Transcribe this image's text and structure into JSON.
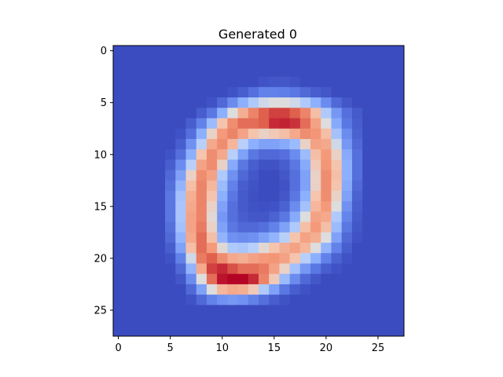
{
  "chart_data": {
    "type": "heatmap",
    "title": "Generated 0",
    "xlabel": "",
    "ylabel": "",
    "colormap": "coolwarm",
    "grid": false,
    "rows": 28,
    "cols": 28,
    "x_ticks": [
      0,
      5,
      10,
      15,
      20,
      25
    ],
    "y_ticks": [
      0,
      5,
      10,
      15,
      20,
      25
    ],
    "value_range": [
      0,
      1
    ],
    "values": [
      [
        0,
        0,
        0,
        0,
        0,
        0,
        0,
        0,
        0,
        0,
        0,
        0,
        0,
        0,
        0,
        0,
        0,
        0,
        0,
        0,
        0,
        0,
        0,
        0,
        0,
        0,
        0,
        0
      ],
      [
        0,
        0,
        0,
        0,
        0,
        0,
        0,
        0,
        0,
        0,
        0,
        0,
        0,
        0,
        0,
        0,
        0,
        0,
        0,
        0,
        0,
        0,
        0,
        0,
        0,
        0,
        0,
        0
      ],
      [
        0,
        0,
        0,
        0,
        0,
        0,
        0,
        0,
        0,
        0,
        0,
        0,
        0,
        0,
        0,
        0,
        0,
        0,
        0,
        0,
        0,
        0,
        0,
        0,
        0,
        0,
        0,
        0
      ],
      [
        0,
        0,
        0,
        0,
        0,
        0,
        0,
        0,
        0,
        0,
        0,
        0,
        0,
        0,
        0.02,
        0.03,
        0.03,
        0.02,
        0,
        0,
        0,
        0,
        0,
        0,
        0,
        0,
        0,
        0
      ],
      [
        0,
        0,
        0,
        0,
        0,
        0,
        0,
        0,
        0,
        0,
        0,
        0.02,
        0.05,
        0.1,
        0.15,
        0.15,
        0.14,
        0.12,
        0.08,
        0.05,
        0.03,
        0,
        0,
        0,
        0,
        0,
        0,
        0
      ],
      [
        0,
        0,
        0,
        0,
        0,
        0,
        0,
        0,
        0,
        0.02,
        0.08,
        0.18,
        0.3,
        0.42,
        0.48,
        0.5,
        0.5,
        0.48,
        0.42,
        0.3,
        0.18,
        0.08,
        0.03,
        0,
        0,
        0,
        0,
        0
      ],
      [
        0,
        0,
        0,
        0,
        0,
        0,
        0,
        0,
        0.05,
        0.12,
        0.3,
        0.5,
        0.68,
        0.8,
        0.88,
        0.92,
        0.92,
        0.88,
        0.8,
        0.62,
        0.42,
        0.22,
        0.1,
        0.04,
        0,
        0,
        0,
        0
      ],
      [
        0,
        0,
        0,
        0,
        0,
        0,
        0,
        0.05,
        0.15,
        0.35,
        0.6,
        0.78,
        0.85,
        0.85,
        0.88,
        0.95,
        0.96,
        0.94,
        0.85,
        0.72,
        0.5,
        0.28,
        0.12,
        0.05,
        0,
        0,
        0,
        0
      ],
      [
        0,
        0,
        0,
        0,
        0,
        0,
        0.02,
        0.1,
        0.3,
        0.55,
        0.75,
        0.8,
        0.72,
        0.6,
        0.55,
        0.58,
        0.62,
        0.7,
        0.78,
        0.76,
        0.62,
        0.38,
        0.18,
        0.06,
        0,
        0,
        0,
        0
      ],
      [
        0,
        0,
        0,
        0,
        0,
        0,
        0.05,
        0.2,
        0.45,
        0.7,
        0.78,
        0.65,
        0.45,
        0.3,
        0.25,
        0.25,
        0.28,
        0.35,
        0.55,
        0.72,
        0.7,
        0.48,
        0.22,
        0.08,
        0,
        0,
        0,
        0
      ],
      [
        0,
        0,
        0,
        0,
        0,
        0.02,
        0.1,
        0.3,
        0.6,
        0.78,
        0.7,
        0.45,
        0.25,
        0.12,
        0.08,
        0.08,
        0.1,
        0.18,
        0.35,
        0.62,
        0.75,
        0.55,
        0.28,
        0.1,
        0,
        0,
        0,
        0
      ],
      [
        0,
        0,
        0,
        0,
        0,
        0.05,
        0.18,
        0.45,
        0.72,
        0.78,
        0.55,
        0.28,
        0.12,
        0.05,
        0.02,
        0.02,
        0.05,
        0.12,
        0.28,
        0.58,
        0.76,
        0.6,
        0.3,
        0.1,
        0,
        0,
        0,
        0
      ],
      [
        0,
        0,
        0,
        0,
        0,
        0.08,
        0.25,
        0.55,
        0.78,
        0.72,
        0.42,
        0.2,
        0.08,
        0.03,
        0,
        0,
        0.03,
        0.1,
        0.25,
        0.55,
        0.78,
        0.62,
        0.3,
        0.1,
        0,
        0,
        0,
        0
      ],
      [
        0,
        0,
        0,
        0,
        0,
        0.1,
        0.32,
        0.62,
        0.8,
        0.65,
        0.35,
        0.15,
        0.05,
        0.02,
        0,
        0,
        0.02,
        0.1,
        0.25,
        0.55,
        0.78,
        0.6,
        0.28,
        0.08,
        0,
        0,
        0,
        0
      ],
      [
        0,
        0,
        0,
        0,
        0,
        0.12,
        0.38,
        0.68,
        0.8,
        0.6,
        0.3,
        0.12,
        0.04,
        0.01,
        0,
        0,
        0.03,
        0.12,
        0.3,
        0.6,
        0.78,
        0.55,
        0.25,
        0.06,
        0,
        0,
        0,
        0
      ],
      [
        0,
        0,
        0,
        0,
        0,
        0.12,
        0.4,
        0.7,
        0.8,
        0.55,
        0.25,
        0.1,
        0.04,
        0.02,
        0.01,
        0.02,
        0.06,
        0.18,
        0.38,
        0.65,
        0.75,
        0.5,
        0.2,
        0.05,
        0,
        0,
        0,
        0
      ],
      [
        0,
        0,
        0,
        0,
        0,
        0.12,
        0.4,
        0.72,
        0.8,
        0.52,
        0.22,
        0.1,
        0.05,
        0.03,
        0.03,
        0.06,
        0.12,
        0.28,
        0.5,
        0.72,
        0.7,
        0.42,
        0.16,
        0.04,
        0,
        0,
        0,
        0
      ],
      [
        0,
        0,
        0,
        0,
        0,
        0.1,
        0.38,
        0.72,
        0.82,
        0.55,
        0.25,
        0.12,
        0.08,
        0.08,
        0.1,
        0.15,
        0.25,
        0.42,
        0.62,
        0.75,
        0.62,
        0.35,
        0.12,
        0.03,
        0,
        0,
        0,
        0
      ],
      [
        0,
        0,
        0,
        0,
        0,
        0.08,
        0.32,
        0.7,
        0.85,
        0.62,
        0.32,
        0.2,
        0.18,
        0.2,
        0.25,
        0.32,
        0.45,
        0.6,
        0.72,
        0.68,
        0.5,
        0.25,
        0.08,
        0.02,
        0,
        0,
        0,
        0
      ],
      [
        0,
        0,
        0,
        0,
        0,
        0.05,
        0.25,
        0.62,
        0.85,
        0.75,
        0.52,
        0.42,
        0.4,
        0.45,
        0.52,
        0.6,
        0.68,
        0.72,
        0.65,
        0.5,
        0.32,
        0.15,
        0.05,
        0,
        0,
        0,
        0,
        0
      ],
      [
        0,
        0,
        0,
        0,
        0,
        0.02,
        0.15,
        0.48,
        0.82,
        0.88,
        0.78,
        0.7,
        0.68,
        0.72,
        0.75,
        0.76,
        0.72,
        0.6,
        0.45,
        0.3,
        0.15,
        0.06,
        0.02,
        0,
        0,
        0,
        0,
        0
      ],
      [
        0,
        0,
        0,
        0,
        0,
        0,
        0.08,
        0.32,
        0.7,
        0.92,
        0.95,
        0.9,
        0.85,
        0.85,
        0.82,
        0.72,
        0.55,
        0.38,
        0.22,
        0.12,
        0.05,
        0.02,
        0,
        0,
        0,
        0,
        0,
        0
      ],
      [
        0,
        0,
        0,
        0,
        0,
        0,
        0.03,
        0.18,
        0.5,
        0.85,
        0.98,
        1,
        1,
        0.95,
        0.8,
        0.58,
        0.35,
        0.18,
        0.08,
        0.03,
        0,
        0,
        0,
        0,
        0,
        0,
        0,
        0
      ],
      [
        0,
        0,
        0,
        0,
        0,
        0,
        0,
        0.08,
        0.25,
        0.5,
        0.65,
        0.7,
        0.68,
        0.58,
        0.42,
        0.25,
        0.12,
        0.05,
        0.02,
        0,
        0,
        0,
        0,
        0,
        0,
        0,
        0,
        0
      ],
      [
        0,
        0,
        0,
        0,
        0,
        0,
        0,
        0.02,
        0.08,
        0.15,
        0.2,
        0.22,
        0.2,
        0.15,
        0.1,
        0.05,
        0.02,
        0,
        0,
        0,
        0,
        0,
        0,
        0,
        0,
        0,
        0,
        0
      ],
      [
        0,
        0,
        0,
        0,
        0,
        0,
        0,
        0,
        0,
        0,
        0,
        0,
        0,
        0,
        0,
        0,
        0,
        0,
        0,
        0,
        0,
        0,
        0,
        0,
        0,
        0,
        0,
        0
      ],
      [
        0,
        0,
        0,
        0,
        0,
        0,
        0,
        0,
        0,
        0,
        0,
        0,
        0,
        0,
        0,
        0,
        0,
        0,
        0,
        0,
        0,
        0,
        0,
        0,
        0,
        0,
        0,
        0
      ],
      [
        0,
        0,
        0,
        0,
        0,
        0,
        0,
        0,
        0,
        0,
        0,
        0,
        0,
        0,
        0,
        0,
        0,
        0,
        0,
        0,
        0,
        0,
        0,
        0,
        0,
        0,
        0,
        0
      ]
    ]
  }
}
